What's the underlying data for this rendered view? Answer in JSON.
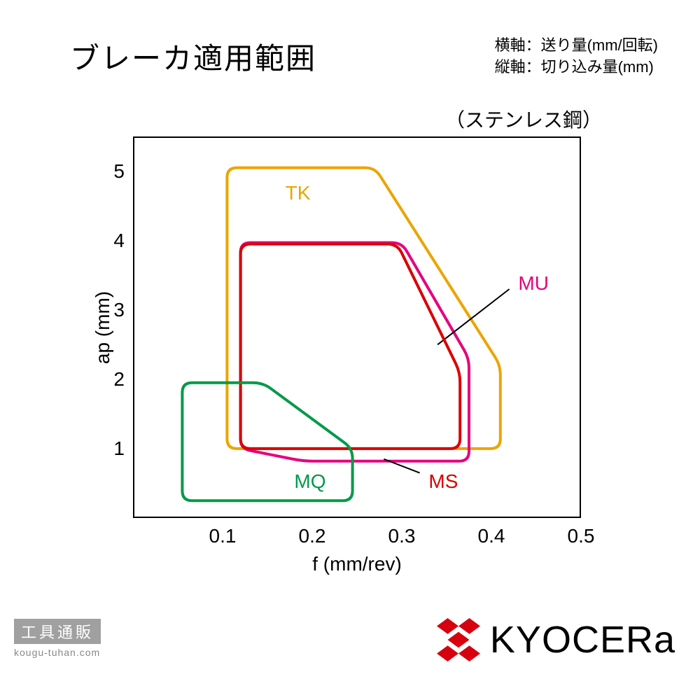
{
  "title": "ブレーカ適用範囲",
  "axis_notes": {
    "x": "横軸：送り量(mm/回転)",
    "y": "縦軸：切り込み量(mm)"
  },
  "subtitle": "（ステンレス鋼）",
  "chart": {
    "type": "region-outline",
    "xlabel": "f (mm/rev)",
    "ylabel": "ap (mm)",
    "xlim": [
      0,
      0.5
    ],
    "ylim": [
      0,
      5.5
    ],
    "xticks": [
      0.1,
      0.2,
      0.3,
      0.4,
      0.5
    ],
    "yticks": [
      1,
      2,
      3,
      4,
      5
    ],
    "tick_fontsize": 28,
    "label_fontsize": 28,
    "border_color": "#000000",
    "background_color": "#ffffff",
    "line_width": 4,
    "corner_radius": 14,
    "series": [
      {
        "name": "TK",
        "color": "#eba500",
        "label_xy": [
          0.17,
          4.7
        ],
        "points": [
          [
            0.105,
            1.0
          ],
          [
            0.105,
            5.05
          ],
          [
            0.27,
            5.05
          ],
          [
            0.41,
            2.2
          ],
          [
            0.41,
            1.0
          ]
        ]
      },
      {
        "name": "MU",
        "color": "#e6007e",
        "label_xy": [
          0.43,
          3.4
        ],
        "label_anchor": "left",
        "leader": {
          "from": [
            0.42,
            3.3
          ],
          "to": [
            0.34,
            2.5
          ]
        },
        "points": [
          [
            0.12,
            1.0
          ],
          [
            0.12,
            3.97
          ],
          [
            0.3,
            3.97
          ],
          [
            0.375,
            2.3
          ],
          [
            0.375,
            0.82
          ],
          [
            0.19,
            0.82
          ]
        ]
      },
      {
        "name": "MS",
        "color": "#d90000",
        "label_xy": [
          0.33,
          0.55
        ],
        "leader": {
          "from": [
            0.32,
            0.65
          ],
          "to": [
            0.28,
            0.85
          ]
        },
        "points": [
          [
            0.12,
            1.0
          ],
          [
            0.12,
            3.95
          ],
          [
            0.295,
            3.95
          ],
          [
            0.365,
            2.1
          ],
          [
            0.365,
            1.0
          ],
          [
            0.24,
            1.0
          ]
        ]
      },
      {
        "name": "MQ",
        "color": "#009a49",
        "label_xy": [
          0.18,
          0.55
        ],
        "points": [
          [
            0.055,
            0.25
          ],
          [
            0.055,
            1.95
          ],
          [
            0.145,
            1.95
          ],
          [
            0.245,
            1.0
          ],
          [
            0.245,
            0.25
          ]
        ]
      }
    ]
  },
  "watermark": {
    "badge": "工具通販",
    "url": "kougu-tuhan.com"
  },
  "brand": {
    "name": "KYOCERa",
    "color": "#d7000f"
  }
}
